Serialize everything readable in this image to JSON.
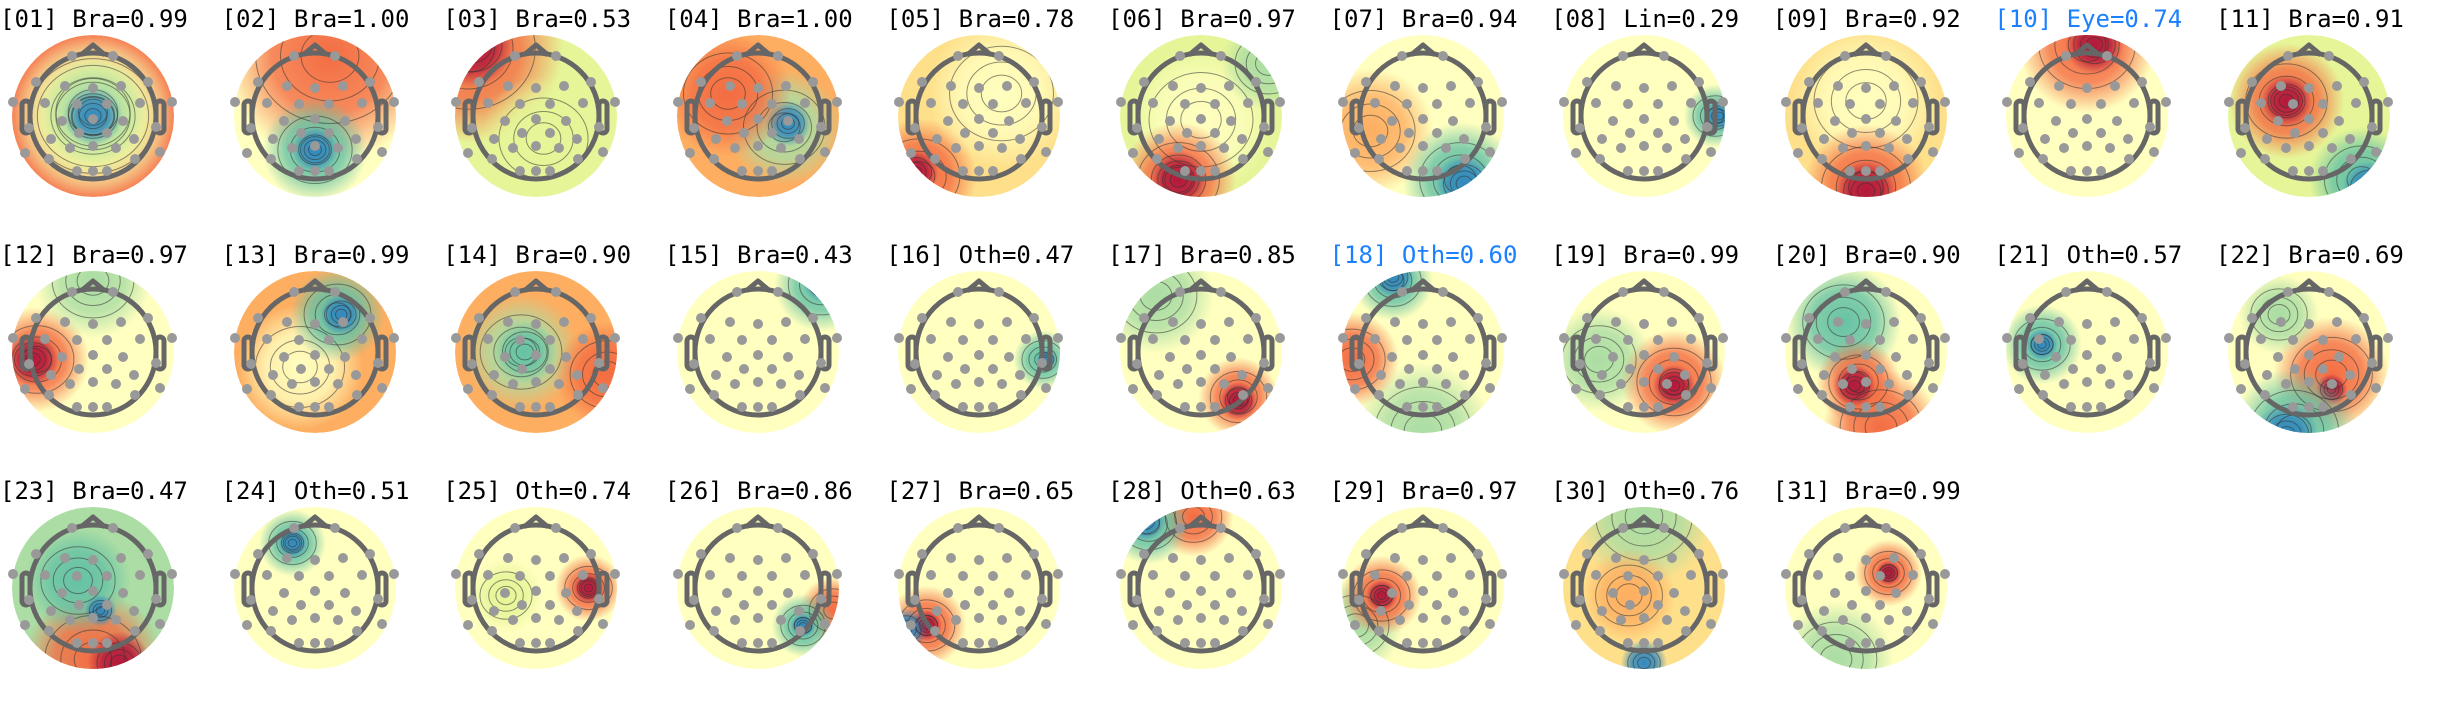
{
  "figure": {
    "components": [
      {
        "title": "[01] Bra=0.99",
        "highlighted": false
      },
      {
        "title": "[02] Bra=1.00",
        "highlighted": false
      },
      {
        "title": "[03] Bra=0.53",
        "highlighted": false
      },
      {
        "title": "[04] Bra=1.00",
        "highlighted": false
      },
      {
        "title": "[05] Bra=0.78",
        "highlighted": false
      },
      {
        "title": "[06] Bra=0.97",
        "highlighted": false
      },
      {
        "title": "[07] Bra=0.94",
        "highlighted": false
      },
      {
        "title": "[08] Lin=0.29",
        "highlighted": false
      },
      {
        "title": "[09] Bra=0.92",
        "highlighted": false
      },
      {
        "title": "[10] Eye=0.74",
        "highlighted": true
      },
      {
        "title": "[11] Bra=0.91",
        "highlighted": false
      },
      {
        "title": "[12] Bra=0.97",
        "highlighted": false
      },
      {
        "title": "[13] Bra=0.99",
        "highlighted": false
      },
      {
        "title": "[14] Bra=0.90",
        "highlighted": false
      },
      {
        "title": "[15] Bra=0.43",
        "highlighted": false
      },
      {
        "title": "[16] Oth=0.47",
        "highlighted": false
      },
      {
        "title": "[17] Bra=0.85",
        "highlighted": false
      },
      {
        "title": "[18] Oth=0.60",
        "highlighted": true
      },
      {
        "title": "[19] Bra=0.99",
        "highlighted": false
      },
      {
        "title": "[20] Bra=0.90",
        "highlighted": false
      },
      {
        "title": "[21] Oth=0.57",
        "highlighted": false
      },
      {
        "title": "[22] Bra=0.69",
        "highlighted": false
      },
      {
        "title": "[23] Bra=0.47",
        "highlighted": false
      },
      {
        "title": "[24] Oth=0.51",
        "highlighted": false
      },
      {
        "title": "[25] Oth=0.74",
        "highlighted": false
      },
      {
        "title": "[26] Bra=0.86",
        "highlighted": false
      },
      {
        "title": "[27] Bra=0.65",
        "highlighted": false
      },
      {
        "title": "[28] Oth=0.63",
        "highlighted": false
      },
      {
        "title": "[29] Bra=0.97",
        "highlighted": false
      },
      {
        "title": "[30] Oth=0.76",
        "highlighted": false
      },
      {
        "title": "[31] Bra=0.99",
        "highlighted": false
      }
    ],
    "colors": {
      "highlight_title": "#1a80ff",
      "normal_title": "#000000",
      "head_outline": "#666666",
      "electrode": "#999999",
      "colormap": [
        "#9e0142",
        "#f46d43",
        "#fdae61",
        "#fee08b",
        "#ffffbf",
        "#e6f598",
        "#abdda4",
        "#66c2a5",
        "#3288bd",
        "#2b4fa8"
      ]
    }
  }
}
